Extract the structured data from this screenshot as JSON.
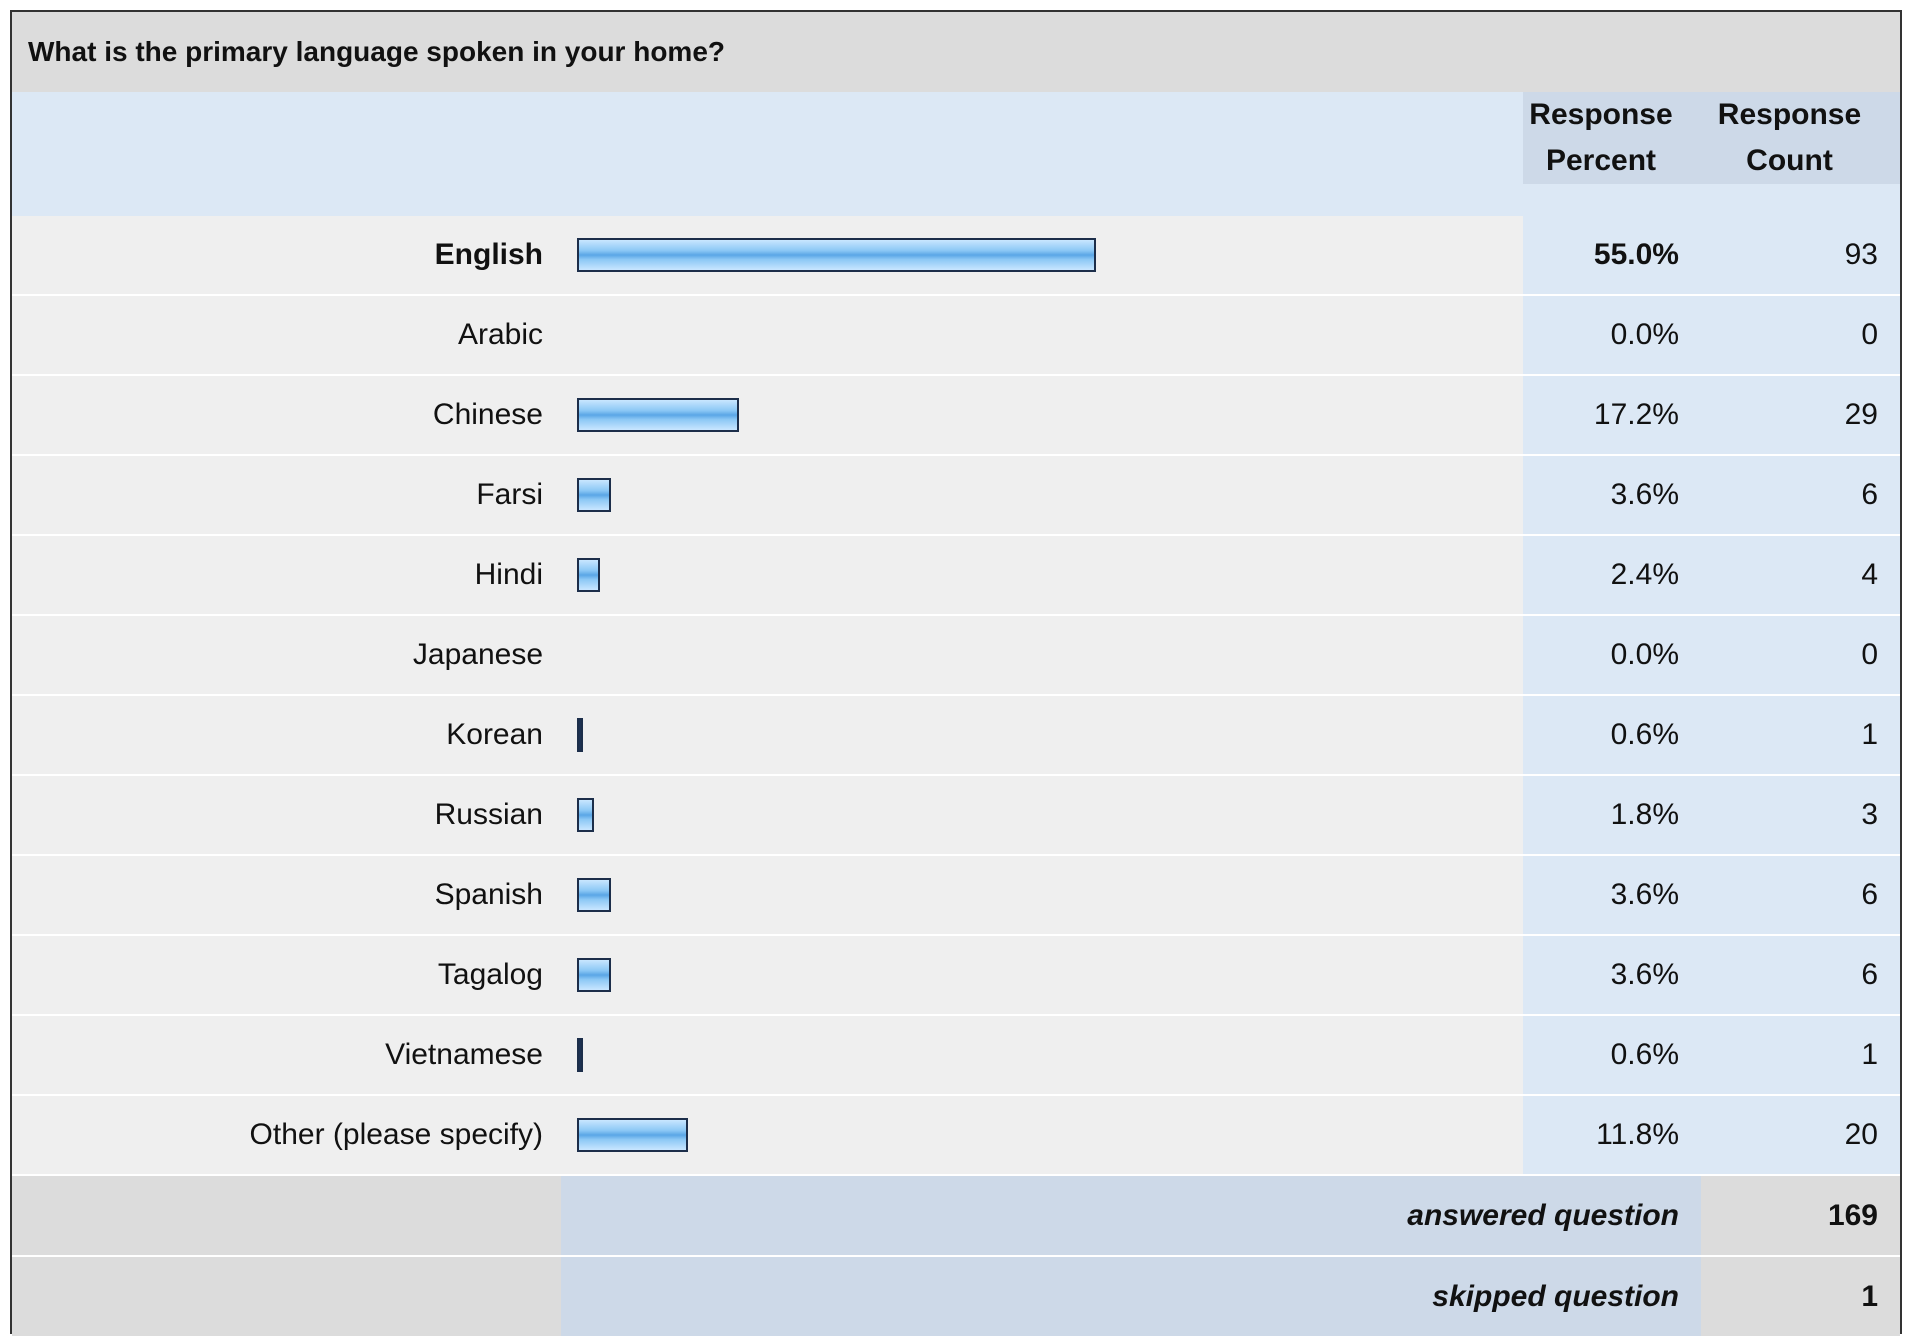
{
  "question": "What is the primary language spoken in your home?",
  "headers": {
    "response_percent": "Response Percent",
    "response_count": "Response Count"
  },
  "chart_data": {
    "type": "bar",
    "orientation": "horizontal",
    "categories": [
      "English",
      "Arabic",
      "Chinese",
      "Farsi",
      "Hindi",
      "Japanese",
      "Korean",
      "Russian",
      "Spanish",
      "Tagalog",
      "Vietnamese",
      "Other (please specify)"
    ],
    "values": [
      55.0,
      0.0,
      17.2,
      3.6,
      2.4,
      0.0,
      0.6,
      1.8,
      3.6,
      3.6,
      0.6,
      11.8
    ],
    "percent_labels": [
      "55.0%",
      "0.0%",
      "17.2%",
      "3.6%",
      "2.4%",
      "0.0%",
      "0.6%",
      "1.8%",
      "3.6%",
      "3.6%",
      "0.6%",
      "11.8%"
    ],
    "counts": [
      "93",
      "0",
      "29",
      "6",
      "4",
      "0",
      "1",
      "3",
      "6",
      "6",
      "1",
      "20"
    ],
    "highlight_category": "English",
    "xlim": [
      0,
      100
    ],
    "grid": false
  },
  "summary": {
    "answered_label": "answered question",
    "answered_value": "169",
    "skipped_label": "skipped question",
    "skipped_value": "1"
  },
  "colors": {
    "bar_fill": "#8cc8f5",
    "bar_border": "#1c2e4a",
    "header_bg": "#dce8f5",
    "row_bg": "#efefef"
  }
}
